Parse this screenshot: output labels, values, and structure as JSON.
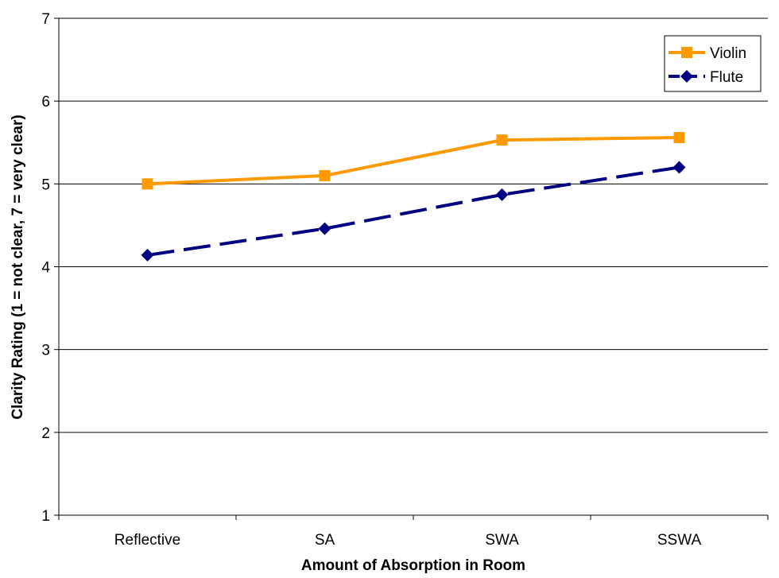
{
  "chart_data": {
    "type": "line",
    "title": "",
    "xlabel": "Amount of Absorption in Room",
    "ylabel": "Clarity Rating (1 = not clear, 7 = very clear)",
    "categories": [
      "Reflective",
      "SA",
      "SWA",
      "SSWA"
    ],
    "ylim": [
      1,
      7
    ],
    "yticks": [
      1,
      2,
      3,
      4,
      5,
      6,
      7
    ],
    "grid": "horizontal",
    "legend_position": "top-right",
    "series": [
      {
        "name": "Violin",
        "values": [
          5.0,
          5.1,
          5.53,
          5.56
        ],
        "color": "#FF9900",
        "marker": "square",
        "line_style": "solid"
      },
      {
        "name": "Flute",
        "values": [
          4.14,
          4.46,
          4.87,
          5.2
        ],
        "color": "#000080",
        "marker": "diamond",
        "line_style": "dashed"
      }
    ]
  }
}
